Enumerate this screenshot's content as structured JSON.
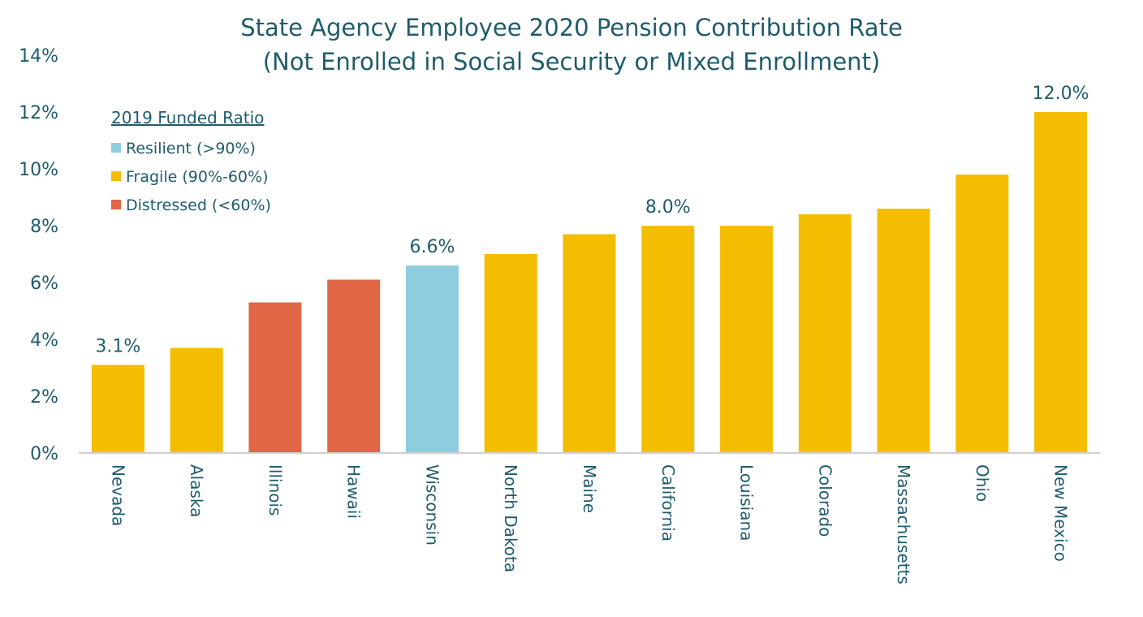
{
  "chart_data": {
    "type": "bar",
    "title": "State Agency Employee 2020 Pension Contribution Rate",
    "subtitle": "(Not Enrolled in Social Security or Mixed Enrollment)",
    "xlabel": "",
    "ylabel": "",
    "ylim": [
      0,
      14
    ],
    "yticks": [
      "0%",
      "2%",
      "4%",
      "6%",
      "8%",
      "10%",
      "12%",
      "14%"
    ],
    "ytick_values": [
      0,
      2,
      4,
      6,
      8,
      10,
      12,
      14
    ],
    "grid": false,
    "legend": {
      "placement": "top-left",
      "title": "2019 Funded Ratio",
      "entries": [
        {
          "key": "resilient",
          "label": "Resilient (>90%)"
        },
        {
          "key": "fragile",
          "label": "Fragile (90%-60%)"
        },
        {
          "key": "distressed",
          "label": "Distressed (<60%)"
        }
      ]
    },
    "colors": {
      "resilient": "#8ecde0",
      "fragile": "#f5bd00",
      "distressed": "#e06645",
      "text": "#1f5c6b",
      "axis": "#d0d0d0"
    },
    "categories": [
      "Nevada",
      "Alaska",
      "Illinois",
      "Hawaii",
      "Wisconsin",
      "North Dakota",
      "Maine",
      "California",
      "Louisiana",
      "Colorado",
      "Massachusetts",
      "Ohio",
      "New Mexico"
    ],
    "values": [
      3.1,
      3.7,
      5.3,
      6.1,
      6.6,
      7.0,
      7.7,
      8.0,
      8.0,
      8.4,
      8.6,
      9.8,
      12.0
    ],
    "groups": [
      "fragile",
      "fragile",
      "distressed",
      "distressed",
      "resilient",
      "fragile",
      "fragile",
      "fragile",
      "fragile",
      "fragile",
      "fragile",
      "fragile",
      "fragile"
    ],
    "data_labels": {
      "Nevada": "3.1%",
      "Wisconsin": "6.6%",
      "California": "8.0%",
      "New Mexico": "12.0%"
    }
  }
}
